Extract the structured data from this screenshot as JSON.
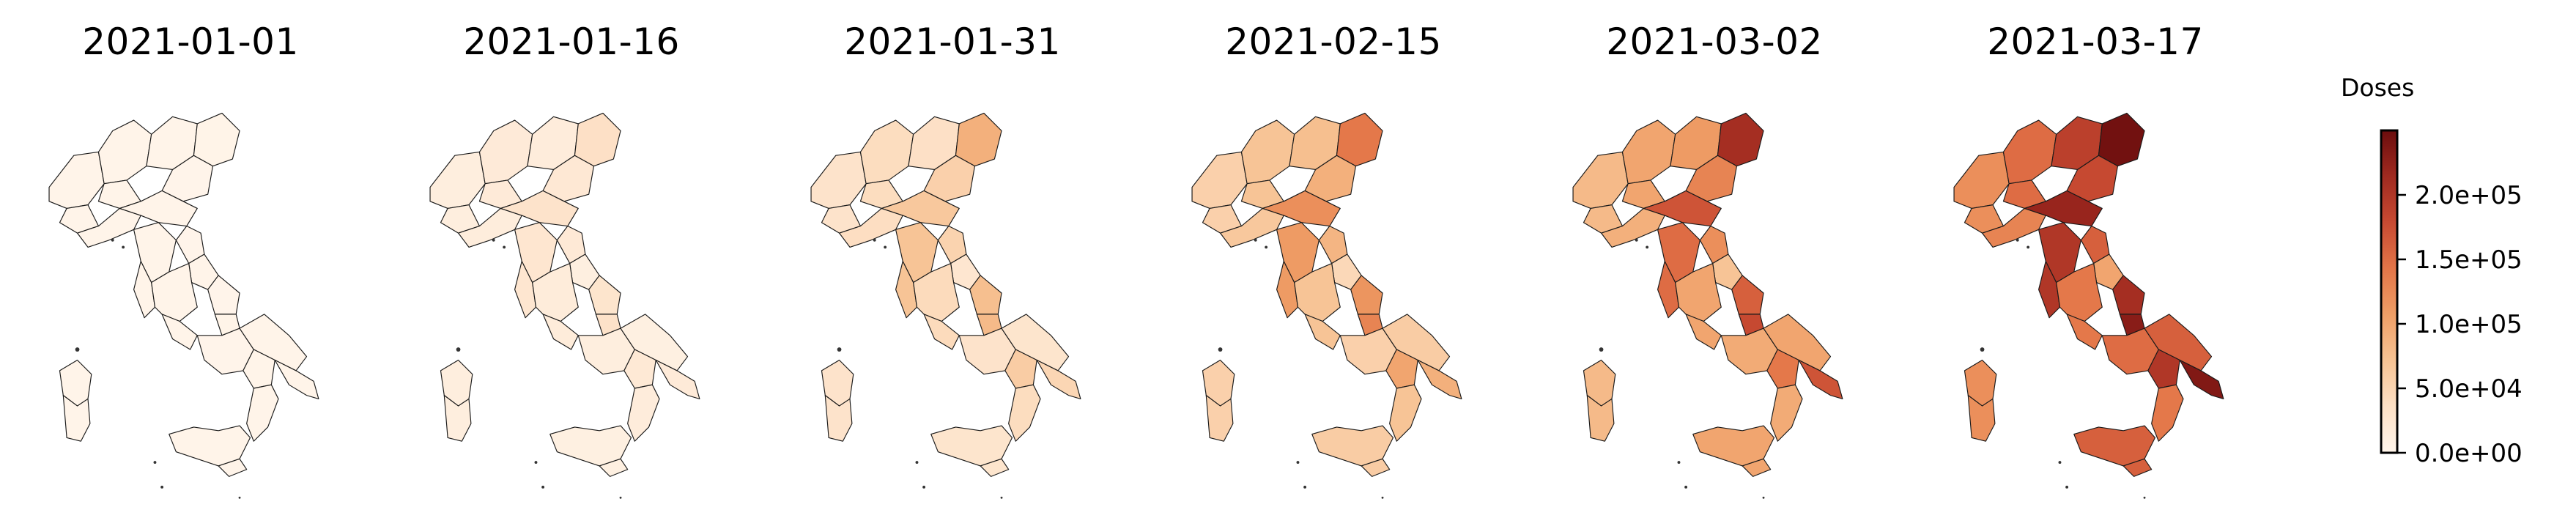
{
  "colorbar": {
    "label": "Doses",
    "min": 0,
    "max": 250000,
    "ticks": [
      {
        "value": 0,
        "label": "0.0e+00"
      },
      {
        "value": 50000,
        "label": "5.0e+04"
      },
      {
        "value": 100000,
        "label": "1.0e+05"
      },
      {
        "value": 150000,
        "label": "1.5e+05"
      },
      {
        "value": 200000,
        "label": "2.0e+05"
      }
    ],
    "colors": [
      "#fff5eb",
      "#fde0c5",
      "#f7c394",
      "#ef9e66",
      "#e37548",
      "#c84a32",
      "#a02a20",
      "#6b0d0d"
    ]
  },
  "panels": [
    {
      "date": "2021-01-01",
      "region_values": [
        2000,
        1500,
        1800,
        2500,
        1200,
        1600,
        2200,
        1900,
        1400,
        2100,
        1700,
        1300,
        2400,
        1100,
        1500,
        2000,
        1800,
        1600
      ]
    },
    {
      "date": "2021-01-16",
      "region_values": [
        12000,
        18000,
        15000,
        35000,
        22000,
        30000,
        25000,
        14000,
        20000,
        10000,
        16000,
        28000,
        32000,
        12000,
        9000,
        18000,
        21000,
        15000
      ]
    },
    {
      "date": "2021-01-31",
      "region_values": [
        30000,
        40000,
        35000,
        90000,
        55000,
        65000,
        70000,
        38000,
        52000,
        25000,
        42000,
        75000,
        80000,
        30000,
        28000,
        48000,
        60000,
        40000
      ]
    },
    {
      "date": "2021-02-15",
      "region_values": [
        55000,
        70000,
        75000,
        140000,
        90000,
        120000,
        110000,
        65000,
        85000,
        45000,
        70000,
        115000,
        130000,
        55000,
        60000,
        90000,
        100000,
        70000
      ]
    },
    {
      "date": "2021-03-02",
      "region_values": [
        80000,
        100000,
        110000,
        210000,
        130000,
        170000,
        150000,
        90000,
        120000,
        70000,
        100000,
        160000,
        180000,
        95000,
        100000,
        170000,
        140000,
        95000
      ]
    },
    {
      "date": "2021-03-17",
      "region_values": [
        120000,
        150000,
        190000,
        245000,
        180000,
        220000,
        200000,
        130000,
        160000,
        100000,
        140000,
        210000,
        230000,
        150000,
        160000,
        235000,
        200000,
        140000
      ]
    }
  ]
}
